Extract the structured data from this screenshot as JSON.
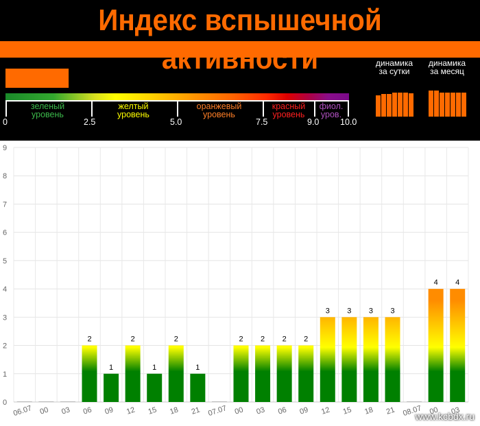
{
  "header": {
    "title": "Индекс вспышечной активности",
    "accent_color": "#ff6a00",
    "current_index_fraction": 0.3,
    "levels": [
      {
        "line1": "зеленый",
        "line2": "уровень",
        "color": "#3cb94b"
      },
      {
        "line1": "желтый",
        "line2": "уровень",
        "color": "#ffff00"
      },
      {
        "line1": "оранжевый",
        "line2": "уровень",
        "color": "#ff7f27"
      },
      {
        "line1": "красный",
        "line2": "уровень",
        "color": "#ff2020"
      },
      {
        "line1": "фиол.",
        "line2": "уров.",
        "color": "#b050c0"
      }
    ],
    "scale_ticks": [
      "0",
      "2.5",
      "5.0",
      "7.5",
      "9.0",
      "10.0"
    ],
    "dynamics": [
      {
        "line1": "динамика",
        "line2": "за сутки",
        "bars": [
          6,
          6.3,
          6.3,
          6.8,
          6.8,
          6.7,
          6.5
        ]
      },
      {
        "line1": "динамика",
        "line2": "за месяц",
        "bars": [
          7.4,
          7.3,
          6.7,
          6.7,
          6.8,
          6.8,
          6.8
        ]
      }
    ]
  },
  "chart_data": {
    "type": "bar",
    "categories": [
      "06.07",
      "00",
      "03",
      "06",
      "09",
      "12",
      "15",
      "18",
      "21",
      "07.07",
      "00",
      "03",
      "06",
      "09",
      "12",
      "15",
      "18",
      "21",
      "08.07",
      "00",
      "03"
    ],
    "values": [
      0,
      0,
      0,
      2,
      1,
      2,
      1,
      2,
      1,
      0,
      2,
      2,
      2,
      2,
      3,
      3,
      3,
      3,
      0,
      4,
      4
    ],
    "ylim": [
      0,
      9
    ],
    "yticks": [
      "0",
      "1",
      "2",
      "3",
      "4",
      "5",
      "6",
      "7",
      "8",
      "9"
    ],
    "grid": true,
    "colors": {
      "bottom": "#008000",
      "mid": "#ffff00",
      "top": "#ff8c00"
    }
  },
  "watermark": "www.kcbdx.ru"
}
